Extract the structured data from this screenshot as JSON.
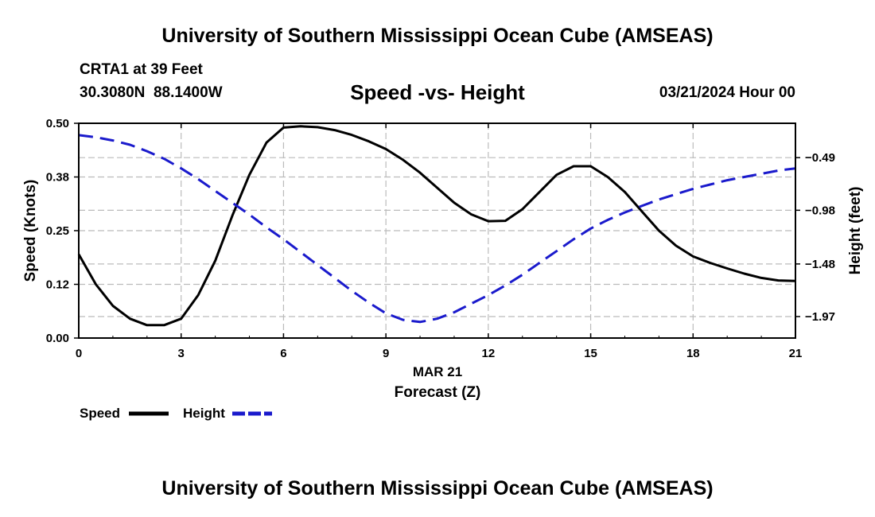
{
  "header": {
    "title": "University of Southern Mississippi Ocean Cube (AMSEAS)",
    "station": "CRTA1 at 39 Feet",
    "coords": "30.3080N  88.1400W",
    "date": "03/21/2024 Hour 00"
  },
  "footer": {
    "title": "University of Southern Mississippi Ocean Cube (AMSEAS)"
  },
  "colors": {
    "speed": "#000000",
    "height": "#1a1acc",
    "grid": "#bbbbbb"
  },
  "chart_data": {
    "type": "line",
    "title": "Speed -vs- Height",
    "xlabel": "Forecast (Z)",
    "xlabel_date": "MAR 21",
    "ylabel": "Speed (Knots)",
    "y2label": "Height (feet)",
    "xlim": [
      0,
      21
    ],
    "ylim": [
      0,
      0.5
    ],
    "y2lim": [
      -2.17,
      -0.17
    ],
    "x_ticks": [
      0,
      3,
      6,
      9,
      12,
      15,
      18,
      21
    ],
    "x_tick_labels": [
      "0",
      "3",
      "6",
      "9",
      "12",
      "15",
      "18",
      "21"
    ],
    "y_ticks": [
      0.0,
      0.125,
      0.25,
      0.375,
      0.5
    ],
    "y_tick_labels": [
      "0.00",
      "0.12",
      "0.25",
      "0.38",
      "0.50"
    ],
    "y2_ticks": [
      -0.49,
      -0.98,
      -1.48,
      -1.97
    ],
    "y2_tick_labels": [
      "−0.49",
      "−0.98",
      "−1.48",
      "−1.97"
    ],
    "grid": true,
    "legend": [
      {
        "name": "Speed",
        "style": "solid"
      },
      {
        "name": "Height",
        "style": "dashed"
      }
    ],
    "series": [
      {
        "name": "Speed",
        "axis": "left",
        "style": "solid",
        "x": [
          0,
          0.5,
          1,
          1.5,
          2,
          2.5,
          3,
          3.5,
          4,
          4.5,
          5,
          5.5,
          6,
          6.5,
          7,
          7.5,
          8,
          8.5,
          9,
          9.5,
          10,
          10.5,
          11,
          11.5,
          12,
          12.5,
          13,
          13.5,
          14,
          14.5,
          15,
          15.5,
          16,
          16.5,
          17,
          17.5,
          18,
          18.5,
          19,
          19.5,
          20,
          20.5,
          21
        ],
        "values": [
          0.195,
          0.125,
          0.075,
          0.045,
          0.03,
          0.03,
          0.045,
          0.1,
          0.18,
          0.285,
          0.38,
          0.455,
          0.49,
          0.493,
          0.491,
          0.484,
          0.473,
          0.458,
          0.44,
          0.415,
          0.385,
          0.35,
          0.315,
          0.288,
          0.272,
          0.273,
          0.3,
          0.34,
          0.38,
          0.4,
          0.4,
          0.375,
          0.34,
          0.295,
          0.25,
          0.215,
          0.19,
          0.175,
          0.162,
          0.15,
          0.14,
          0.134,
          0.133
        ]
      },
      {
        "name": "Height",
        "axis": "right",
        "style": "dashed",
        "x": [
          0,
          0.5,
          1,
          1.5,
          2,
          2.5,
          3,
          3.5,
          4,
          4.5,
          5,
          5.5,
          6,
          6.5,
          7,
          7.5,
          8,
          8.5,
          9,
          9.5,
          10,
          10.5,
          11,
          11.5,
          12,
          12.5,
          13,
          13.5,
          14,
          14.5,
          15,
          15.5,
          16,
          16.5,
          17,
          17.5,
          18,
          18.5,
          19,
          19.5,
          20,
          20.5,
          21
        ],
        "values": [
          -0.28,
          -0.3,
          -0.33,
          -0.37,
          -0.43,
          -0.5,
          -0.59,
          -0.69,
          -0.8,
          -0.91,
          -1.02,
          -1.14,
          -1.25,
          -1.37,
          -1.49,
          -1.61,
          -1.73,
          -1.84,
          -1.94,
          -2.0,
          -2.02,
          -1.99,
          -1.93,
          -1.85,
          -1.77,
          -1.68,
          -1.58,
          -1.47,
          -1.36,
          -1.25,
          -1.15,
          -1.07,
          -1.0,
          -0.94,
          -0.88,
          -0.83,
          -0.78,
          -0.74,
          -0.7,
          -0.67,
          -0.64,
          -0.61,
          -0.59
        ]
      }
    ]
  }
}
